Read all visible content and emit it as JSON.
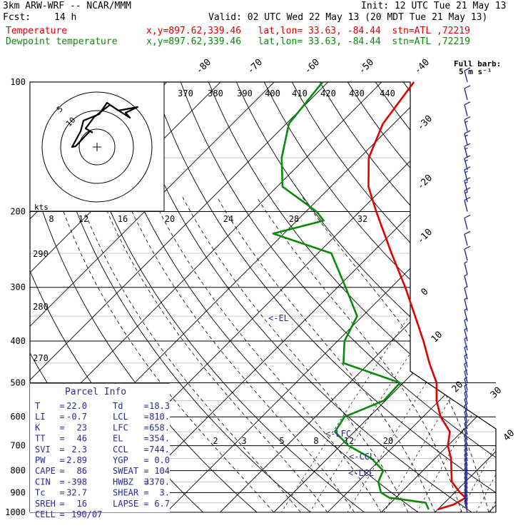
{
  "header": {
    "model": "3km ARW-WRF -- NCAR/MMM",
    "init": "Init: 12 UTC Tue 21 May 13",
    "fcst_label": "Fcst:",
    "fcst_value": "14 h",
    "valid": "Valid: 02 UTC Wed 22 May 13 (20 MDT Tue 21 May 13)",
    "temp_label": "Temperature",
    "temp_info": "x,y=897.62,339.46   lat,lon= 33.63, -84.44  stn=ATL ,72219",
    "dew_label": "Dewpoint temperature",
    "dew_info": "x,y=897.62,339.46   lat,lon= 33.63, -84.44  stn=ATL ,72219"
  },
  "colors": {
    "temperature": "#e00000",
    "dewpoint": "#0a8a0a",
    "barbs": "#2a2a9a",
    "annot": "#2a2a9a"
  },
  "barb_legend": {
    "title": "Full barb:",
    "value": "5 m s⁻¹"
  },
  "hodograph": {
    "units": "kts",
    "ring_labels": [
      "5",
      "10"
    ]
  },
  "parcel_info": {
    "title": "Parcel Info",
    "rows": [
      [
        "T",
        "=",
        "22.0",
        "Td",
        "=",
        "18.3"
      ],
      [
        "LI",
        "=",
        "-0.7",
        "LCL",
        "=",
        "810."
      ],
      [
        "K",
        "=",
        "23",
        "LFC",
        "=",
        "658."
      ],
      [
        "TT",
        "=",
        "46",
        "EL",
        "=",
        "354."
      ],
      [
        "SVI",
        "=",
        "2.3",
        "CCL",
        "=",
        "744."
      ],
      [
        "PW",
        "=",
        "2.89",
        "YGP",
        "=",
        "0.0"
      ],
      [
        "CAPE",
        "=",
        "86",
        "SWEAT",
        "=",
        "104"
      ],
      [
        "CIN",
        "=",
        "-398",
        "HWBZ",
        "=",
        "3370."
      ],
      [
        "Tc",
        "=",
        "32.7",
        "SHEAR",
        "=",
        "3."
      ],
      [
        "SREH",
        "=",
        "16",
        "LAPSE",
        "=",
        "6.7"
      ],
      [
        "CELL",
        "=",
        "190/07",
        "",
        "",
        ""
      ]
    ]
  },
  "annotations": [
    "<-EL",
    "<-LFC",
    "<-CCL",
    "<-LCL"
  ],
  "chart_data": {
    "type": "line",
    "y_axis": {
      "scale": "log",
      "ticks": [
        100,
        200,
        300,
        400,
        500,
        600,
        700,
        800,
        900,
        1000
      ]
    },
    "isotherm_labels": [
      "-80",
      "-70",
      "-60",
      "-50",
      "-40",
      "-30",
      "-20",
      "-10",
      "0",
      "10",
      "20",
      "30",
      "40"
    ],
    "theta_labels": [
      "370",
      "380",
      "390",
      "400",
      "410",
      "420",
      "430",
      "440"
    ],
    "mixing_ratio_labels_top": [
      "8",
      "12",
      "16",
      "20",
      "24",
      "28",
      "32"
    ],
    "mixing_ratio_labels_bottom": [
      "2",
      "3",
      "5",
      "8",
      "12",
      "20"
    ],
    "left_theta_labels": [
      "290",
      "280",
      "270"
    ],
    "series": [
      {
        "name": "Temperature",
        "points": [
          [
            985,
            20.0
          ],
          [
            960,
            22.0
          ],
          [
            925,
            23.0
          ],
          [
            900,
            21.0
          ],
          [
            850,
            17.5
          ],
          [
            800,
            15.3
          ],
          [
            750,
            13.0
          ],
          [
            700,
            10.0
          ],
          [
            650,
            7.8
          ],
          [
            600,
            3.3
          ],
          [
            550,
            -0.5
          ],
          [
            500,
            -3.8
          ],
          [
            450,
            -8.8
          ],
          [
            400,
            -14.0
          ],
          [
            350,
            -20.2
          ],
          [
            300,
            -27.4
          ],
          [
            250,
            -36.3
          ],
          [
            200,
            -46.9
          ],
          [
            175,
            -53.0
          ],
          [
            150,
            -58.3
          ],
          [
            125,
            -62.0
          ],
          [
            100,
            -64.0
          ]
        ]
      },
      {
        "name": "Dewpoint temperature",
        "points": [
          [
            985,
            18.3
          ],
          [
            950,
            16.5
          ],
          [
            925,
            8.8
          ],
          [
            900,
            6.3
          ],
          [
            850,
            3.8
          ],
          [
            800,
            2.6
          ],
          [
            750,
            -1.8
          ],
          [
            700,
            -8.5
          ],
          [
            650,
            -13.6
          ],
          [
            600,
            -14.6
          ],
          [
            550,
            -10.3
          ],
          [
            500,
            -10.6
          ],
          [
            450,
            -24.8
          ],
          [
            400,
            -28.7
          ],
          [
            350,
            -31.0
          ],
          [
            300,
            -38.5
          ],
          [
            250,
            -47.5
          ],
          [
            225,
            -62.0
          ],
          [
            210,
            -55.0
          ],
          [
            200,
            -58.0
          ],
          [
            175,
            -69.0
          ],
          [
            150,
            -74.5
          ],
          [
            125,
            -79.5
          ],
          [
            100,
            -81.0
          ]
        ]
      }
    ],
    "wind_barbs_ms": [
      [
        1000,
        2
      ],
      [
        980,
        3
      ],
      [
        960,
        4
      ],
      [
        940,
        3
      ],
      [
        920,
        3
      ],
      [
        900,
        2
      ],
      [
        880,
        2
      ],
      [
        860,
        2
      ],
      [
        840,
        2
      ],
      [
        820,
        2
      ],
      [
        800,
        2
      ],
      [
        780,
        2
      ],
      [
        760,
        1
      ],
      [
        740,
        1
      ],
      [
        720,
        1
      ],
      [
        700,
        1
      ],
      [
        680,
        1
      ],
      [
        660,
        1
      ],
      [
        640,
        1
      ],
      [
        620,
        1
      ],
      [
        600,
        1
      ],
      [
        580,
        1
      ],
      [
        560,
        1
      ],
      [
        540,
        1
      ],
      [
        520,
        2
      ],
      [
        500,
        2
      ],
      [
        480,
        2
      ],
      [
        460,
        2
      ],
      [
        440,
        3
      ],
      [
        420,
        3
      ],
      [
        400,
        3
      ],
      [
        380,
        3
      ],
      [
        360,
        3
      ],
      [
        340,
        3
      ],
      [
        320,
        3
      ],
      [
        300,
        4
      ],
      [
        280,
        4
      ],
      [
        260,
        5
      ],
      [
        240,
        6
      ],
      [
        220,
        7
      ],
      [
        200,
        7
      ],
      [
        190,
        8
      ],
      [
        180,
        8
      ],
      [
        170,
        9
      ],
      [
        160,
        9
      ],
      [
        150,
        9
      ],
      [
        140,
        8
      ],
      [
        130,
        8
      ],
      [
        120,
        7
      ],
      [
        110,
        6
      ],
      [
        100,
        5
      ]
    ]
  }
}
